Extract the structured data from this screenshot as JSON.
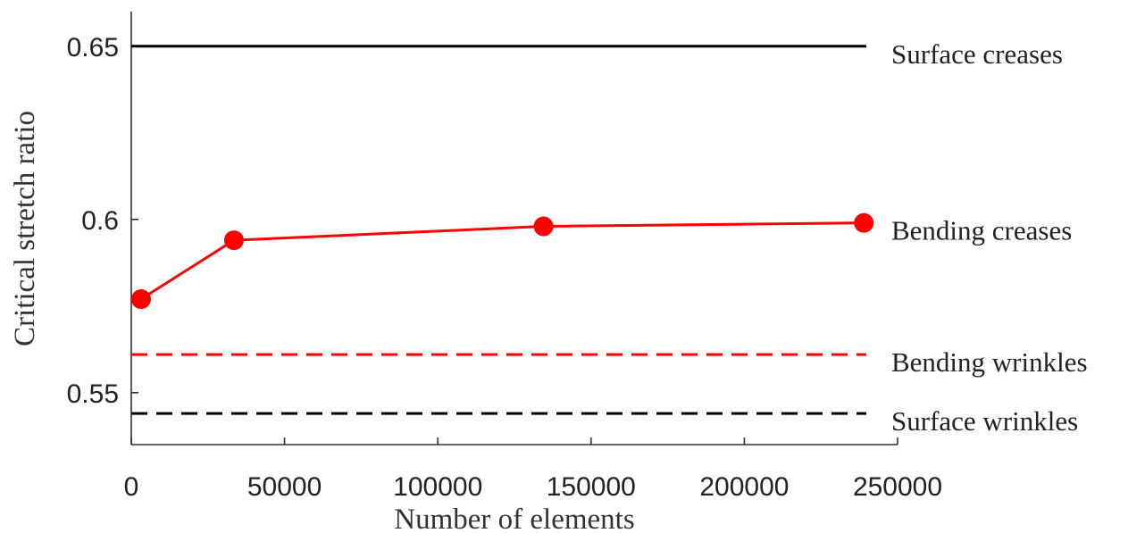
{
  "chart_data": {
    "type": "line",
    "title": "",
    "xlabel": "Number of elements",
    "ylabel": "Critical stretch ratio",
    "xlim": [
      0,
      250000
    ],
    "ylim": [
      0.535,
      0.66
    ],
    "xticks": [
      0,
      50000,
      100000,
      150000,
      200000,
      250000
    ],
    "xtick_labels": [
      "0",
      "50000",
      "100000",
      "150000",
      "200000",
      "250000"
    ],
    "yticks": [
      0.55,
      0.6,
      0.65
    ],
    "ytick_labels": [
      "0.55",
      "0.6",
      "0.65"
    ],
    "grid": false,
    "series": [
      {
        "style": "solid-line-with-markers",
        "color": "#ff0000",
        "x": [
          3200,
          33500,
          134500,
          239000
        ],
        "y": [
          0.577,
          0.594,
          0.598,
          0.599
        ]
      }
    ],
    "reference_lines": [
      {
        "name": "Surface creases",
        "y": 0.65,
        "style": "solid",
        "color": "#000000"
      },
      {
        "name": "Bending creases",
        "y": 0.599,
        "style": "label-only",
        "color": "#ff0000"
      },
      {
        "name": "Bending wrinkles",
        "y": 0.561,
        "style": "dashed",
        "color": "#ff0000"
      },
      {
        "name": "Surface wrinkles",
        "y": 0.544,
        "style": "dashed",
        "color": "#000000"
      }
    ]
  }
}
